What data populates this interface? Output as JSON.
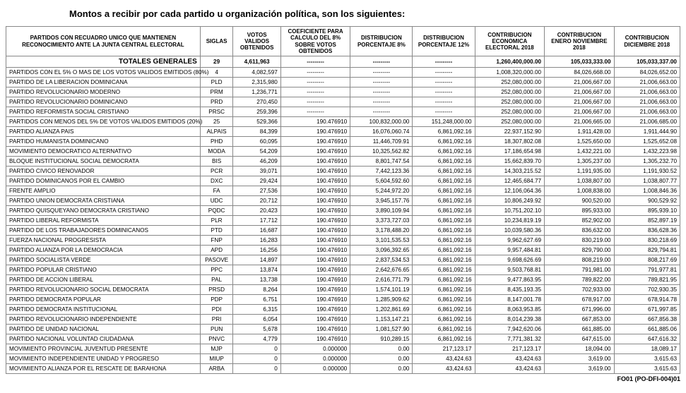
{
  "title": "Montos a recibir por cada partido u organización política, son los siguientes:",
  "footer": "FO01 (PO-DFI-004)01",
  "columns": [
    "PARTIDOS CON RECUADRO UNICO QUE MANTIENEN RECONOCIMIENTO ANTE LA JUNTA CENTRAL ELECTORAL",
    "SIGLAS",
    "VOTOS VALIDOS OBTENIDOS",
    "COEFICIENTE PARA CALCULO DEL 8% SOBRE VOTOS OBTENIDOS",
    "DISTRIBUCION PORCENTAJE 8%",
    "DISTRIBUCION PORCENTAJE 12%",
    "CONTRIBUCION ECONOMICA ELECTORAL 2018",
    "CONTRIBUCION ENERO NOVIEMBRE 2018",
    "CONTRIBUCION DICIEMBRE 2018"
  ],
  "totals": {
    "label": "TOTALES GENERALES",
    "cells": [
      "29",
      "4,611,963",
      "---------",
      "---------",
      "---------",
      "1,260,400,000.00",
      "105,033,333.00",
      "105,033,337.00"
    ]
  },
  "rows": [
    {
      "name": "PARTIDOS CON EL 5% O MAS DE LOS VOTOS VALIDOS EMITIDOS (80%)",
      "cells": [
        "4",
        "4,082,597",
        "---------",
        "---------",
        "---------",
        "1,008,320,000.00",
        "84,026,668.00",
        "84,026,652.00"
      ]
    },
    {
      "name": "PARTIDO DE LA LIBERACION DOMINICANA",
      "cells": [
        "PLD",
        "2,315,980",
        "---------",
        "---------",
        "---------",
        "252,080,000.00",
        "21,006,667.00",
        "21,006,663.00"
      ]
    },
    {
      "name": "PARTIDO REVOLUCIONARIO MODERNO",
      "cells": [
        "PRM",
        "1,236,771",
        "---------",
        "---------",
        "---------",
        "252,080,000.00",
        "21,006,667.00",
        "21,006,663.00"
      ]
    },
    {
      "name": "PARTIDO REVOLUCIONARIO DOMINICANO",
      "cells": [
        "PRD",
        "270,450",
        "---------",
        "---------",
        "---------",
        "252,080,000.00",
        "21,006,667.00",
        "21,006,663.00"
      ]
    },
    {
      "name": "PARTIDO REFORMISTA SOCIAL CRISTIANO",
      "cells": [
        "PRSC",
        "259,396",
        "---------",
        "---------",
        "---------",
        "252,080,000.00",
        "21,006,667.00",
        "21,006,663.00"
      ]
    },
    {
      "name": "PARTIDOS CON MENOS DEL 5% DE VOTOS VALIDOS EMITIDOS (20%)",
      "cells": [
        "25",
        "529,366",
        "190.476910",
        "100,832,000.00",
        "151,248,000.00",
        "252,080,000.00",
        "21,006,665.00",
        "21,006,685.00"
      ]
    },
    {
      "name": "PARTIDO ALIANZA PAIS",
      "cells": [
        "ALPAIS",
        "84,399",
        "190.476910",
        "16,076,060.74",
        "6,861,092.16",
        "22,937,152.90",
        "1,911,428.00",
        "1,911,444.90"
      ]
    },
    {
      "name": "PARTIDO HUMANISTA DOMINICANO",
      "cells": [
        "PHD",
        "60,095",
        "190.476910",
        "11,446,709.91",
        "6,861,092.16",
        "18,307,802.08",
        "1,525,650.00",
        "1,525,652.08"
      ]
    },
    {
      "name": "MOVIMIENTO DEMOCRATICO ALTERNATIVO",
      "cells": [
        "MODA",
        "54,209",
        "190.476910",
        "10,325,562.82",
        "6,861,092.16",
        "17,186,654.98",
        "1,432,221.00",
        "1,432,223.98"
      ]
    },
    {
      "name": "BLOQUE INSTITUCIONAL SOCIAL DEMOCRATA",
      "cells": [
        "BIS",
        "46,209",
        "190.476910",
        "8,801,747.54",
        "6,861,092.16",
        "15,662,839.70",
        "1,305,237.00",
        "1,305,232.70"
      ]
    },
    {
      "name": "PARTIDO CIVICO RENOVADOR",
      "cells": [
        "PCR",
        "39,071",
        "190.476910",
        "7,442,123.36",
        "6,861,092.16",
        "14,303,215.52",
        "1,191,935.00",
        "1,191,930.52"
      ]
    },
    {
      "name": "PARTIDO DOMINICANOS POR EL CAMBIO",
      "cells": [
        "DXC",
        "29,424",
        "190.476910",
        "5,604,592.60",
        "6,861,092.16",
        "12,465,684.77",
        "1,038,807.00",
        "1,038,807.77"
      ]
    },
    {
      "name": "FRENTE AMPLIO",
      "cells": [
        "FA",
        "27,536",
        "190.476910",
        "5,244,972.20",
        "6,861,092.16",
        "12,106,064.36",
        "1,008,838.00",
        "1,008,846.36"
      ]
    },
    {
      "name": "PARTIDO UNION DEMOCRATA CRISTIANA",
      "cells": [
        "UDC",
        "20,712",
        "190.476910",
        "3,945,157.76",
        "6,861,092.16",
        "10,806,249.92",
        "900,520.00",
        "900,529.92"
      ]
    },
    {
      "name": "PARTIDO QUISQUEYANO DEMOCRATA CRISTIANO",
      "cells": [
        "PQDC",
        "20,423",
        "190.476910",
        "3,890,109.94",
        "6,861,092.16",
        "10,751,202.10",
        "895,933.00",
        "895,939.10"
      ]
    },
    {
      "name": "PARTIDO LIBERAL REFORMISTA",
      "cells": [
        "PLR",
        "17,712",
        "190.476910",
        "3,373,727.03",
        "6,861,092.16",
        "10,234,819.19",
        "852,902.00",
        "852,897.19"
      ]
    },
    {
      "name": "PARTIDO DE LOS TRABAJADORES DOMINICANOS",
      "cells": [
        "PTD",
        "16,687",
        "190.476910",
        "3,178,488.20",
        "6,861,092.16",
        "10,039,580.36",
        "836,632.00",
        "836,628.36"
      ]
    },
    {
      "name": "FUERZA NACIONAL PROGRESISTA",
      "cells": [
        "FNP",
        "16,283",
        "190.476910",
        "3,101,535.53",
        "6,861,092.16",
        "9,962,627.69",
        "830,219.00",
        "830,218.69"
      ]
    },
    {
      "name": "PARTIDO ALIANZA POR LA DEMOCRACIA",
      "cells": [
        "APD",
        "16,256",
        "190.476910",
        "3,096,392.65",
        "6,861,092.16",
        "9,957,484.81",
        "829,790.00",
        "829,794.81"
      ]
    },
    {
      "name": "PARTIDO SOCIALISTA VERDE",
      "cells": [
        "PASOVE",
        "14,897",
        "190.476910",
        "2,837,534.53",
        "6,861,092.16",
        "9,698,626.69",
        "808,219.00",
        "808,217.69"
      ]
    },
    {
      "name": "PARTIDO POPULAR CRISTIANO",
      "cells": [
        "PPC",
        "13,874",
        "190.476910",
        "2,642,676.65",
        "6,861,092.16",
        "9,503,768.81",
        "791,981.00",
        "791,977.81"
      ]
    },
    {
      "name": "PARTIDO DE ACCION LIBERAL",
      "cells": [
        "PAL",
        "13,738",
        "190.476910",
        "2,616,771.79",
        "6,861,092.16",
        "9,477,863.95",
        "789,822.00",
        "789,821.95"
      ]
    },
    {
      "name": "PARTIDO REVOLUCIONARIO SOCIAL DEMOCRATA",
      "cells": [
        "PRSD",
        "8,264",
        "190.476910",
        "1,574,101.19",
        "6,861,092.16",
        "8,435,193.35",
        "702,933.00",
        "702,930.35"
      ]
    },
    {
      "name": "PARTIDO DEMOCRATA POPULAR",
      "cells": [
        "PDP",
        "6,751",
        "190.476910",
        "1,285,909.62",
        "6,861,092.16",
        "8,147,001.78",
        "678,917.00",
        "678,914.78"
      ]
    },
    {
      "name": "PARTIDO DEMOCRATA INSTITUCIONAL",
      "cells": [
        "PDI",
        "6,315",
        "190.476910",
        "1,202,861.69",
        "6,861,092.16",
        "8,063,953.85",
        "671,996.00",
        "671,997.85"
      ]
    },
    {
      "name": "PARTIDO REVOLUCIONARIO INDEPENDIENTE",
      "cells": [
        "PRI",
        "6,054",
        "190.476910",
        "1,153,147.21",
        "6,861,092.16",
        "8,014,239.38",
        "667,853.00",
        "667,856.38"
      ]
    },
    {
      "name": "PARTIDO DE UNIDAD NACIONAL",
      "cells": [
        "PUN",
        "5,678",
        "190.476910",
        "1,081,527.90",
        "6,861,092.16",
        "7,942,620.06",
        "661,885.00",
        "661,885.06"
      ]
    },
    {
      "name": "PARTIDO NACIONAL VOLUNTAD CIUDADANA",
      "cells": [
        "PNVC",
        "4,779",
        "190.476910",
        "910,289.15",
        "6,861,092.16",
        "7,771,381.32",
        "647,615.00",
        "647,616.32"
      ]
    },
    {
      "name": "MOVIMIENTO PROVINCIAL JUVENTUD PRESENTE",
      "cells": [
        "MJP",
        "0",
        "0.000000",
        "0.00",
        "217,123.17",
        "217,123.17",
        "18,094.00",
        "18,089.17"
      ]
    },
    {
      "name": "MOVIMIENTO INDEPENDIENTE UNIDAD Y PROGRESO",
      "cells": [
        "MIUP",
        "0",
        "0.000000",
        "0.00",
        "43,424.63",
        "43,424.63",
        "3,619.00",
        "3,615.63"
      ]
    },
    {
      "name": "MOVIMIENTO ALIANZA POR EL RESCATE DE BARAHONA",
      "cells": [
        "ARBA",
        "0",
        "0.000000",
        "0.00",
        "43,424.63",
        "43,424.63",
        "3,619.00",
        "3,615.63"
      ]
    }
  ]
}
